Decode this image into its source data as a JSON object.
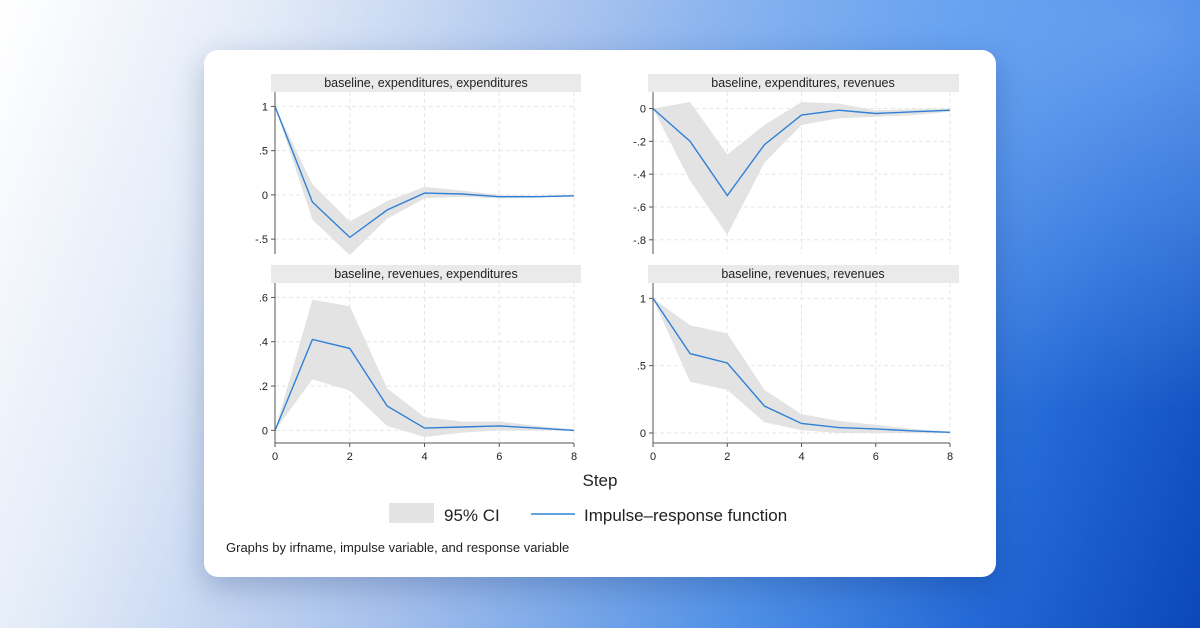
{
  "chart_data": {
    "type": "line",
    "x_label": "Step",
    "note": "Graphs by irfname, impulse variable, and response variable",
    "legend": {
      "ci_label": "95% CI",
      "line_label": "Impulse–response function"
    },
    "colors": {
      "line": "#2f80d6",
      "ci": "#e3e3e3",
      "strip": "#eaeaea"
    },
    "panels": [
      {
        "title": "baseline, expenditures, expenditures",
        "x": [
          0,
          1,
          2,
          3,
          4,
          5,
          6,
          7,
          8
        ],
        "xlim": [
          0,
          8
        ],
        "xticks": [
          0,
          2,
          4,
          6,
          8
        ],
        "ylim": [
          -0.6,
          1.05
        ],
        "yticks": [
          1,
          0.5,
          0,
          -0.5
        ],
        "ytick_labels": [
          "1",
          ".5",
          "0",
          "-.5"
        ],
        "irf": [
          1.0,
          -0.08,
          -0.48,
          -0.17,
          0.02,
          0.01,
          -0.02,
          -0.02,
          -0.01
        ],
        "lower": [
          1.0,
          -0.28,
          -0.68,
          -0.27,
          -0.04,
          -0.02,
          -0.04,
          -0.03,
          -0.02
        ],
        "upper": [
          1.0,
          0.12,
          -0.3,
          -0.07,
          0.09,
          0.05,
          0.0,
          -0.01,
          0.0
        ]
      },
      {
        "title": "baseline, expenditures, revenues",
        "x": [
          0,
          1,
          2,
          3,
          4,
          5,
          6,
          7,
          8
        ],
        "xlim": [
          0,
          8
        ],
        "xticks": [
          0,
          2,
          4,
          6,
          8
        ],
        "ylim": [
          -0.85,
          0.04
        ],
        "yticks": [
          0,
          -0.2,
          -0.4,
          -0.6,
          -0.8
        ],
        "ytick_labels": [
          "0",
          "-.2",
          "-.4",
          "-.6",
          "-.8"
        ],
        "irf": [
          0.0,
          -0.2,
          -0.53,
          -0.22,
          -0.04,
          -0.01,
          -0.03,
          -0.02,
          -0.01
        ],
        "lower": [
          0.0,
          -0.44,
          -0.77,
          -0.33,
          -0.1,
          -0.06,
          -0.05,
          -0.04,
          -0.02
        ],
        "upper": [
          0.0,
          0.04,
          -0.28,
          -0.1,
          0.04,
          0.03,
          -0.01,
          -0.005,
          0.0
        ]
      },
      {
        "title": "baseline, revenues, expenditures",
        "x": [
          0,
          1,
          2,
          3,
          4,
          5,
          6,
          7,
          8
        ],
        "xlim": [
          0,
          8
        ],
        "xticks": [
          0,
          2,
          4,
          6,
          8
        ],
        "ylim": [
          -0.03,
          0.62
        ],
        "yticks": [
          0.6,
          0.4,
          0.2,
          0
        ],
        "ytick_labels": [
          ".6",
          ".4",
          ".2",
          "0"
        ],
        "irf": [
          0.0,
          0.41,
          0.37,
          0.11,
          0.01,
          0.015,
          0.02,
          0.01,
          0.0
        ],
        "lower": [
          0.0,
          0.23,
          0.18,
          0.02,
          -0.03,
          -0.01,
          0.0,
          0.0,
          0.0
        ],
        "upper": [
          0.0,
          0.59,
          0.56,
          0.19,
          0.06,
          0.04,
          0.04,
          0.02,
          0.005
        ]
      },
      {
        "title": "baseline, revenues, revenues",
        "x": [
          0,
          1,
          2,
          3,
          4,
          5,
          6,
          7,
          8
        ],
        "xlim": [
          0,
          8
        ],
        "xticks": [
          0,
          2,
          4,
          6,
          8
        ],
        "ylim": [
          -0.03,
          1.04
        ],
        "yticks": [
          1,
          0.5,
          0
        ],
        "ytick_labels": [
          "1",
          ".5",
          "0"
        ],
        "irf": [
          1.0,
          0.59,
          0.52,
          0.2,
          0.07,
          0.04,
          0.03,
          0.015,
          0.005
        ],
        "lower": [
          1.0,
          0.38,
          0.32,
          0.08,
          0.02,
          0.0,
          0.0,
          0.0,
          0.0
        ],
        "upper": [
          1.0,
          0.8,
          0.74,
          0.32,
          0.14,
          0.09,
          0.06,
          0.03,
          0.01
        ]
      }
    ]
  }
}
